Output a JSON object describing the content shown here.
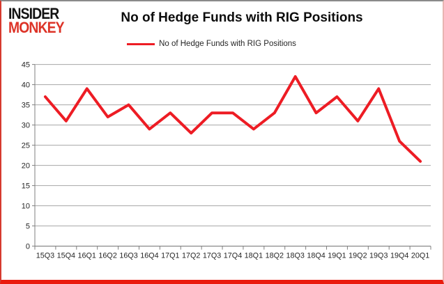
{
  "logo": {
    "line1": "INSIDER",
    "line2": "MONKEY"
  },
  "title": "No of Hedge Funds with RIG Positions",
  "legend": {
    "label": "No of Hedge Funds with RIG Positions"
  },
  "chart_data": {
    "type": "line",
    "title": "No of Hedge Funds with RIG Positions",
    "categories": [
      "15Q3",
      "15Q4",
      "16Q1",
      "16Q2",
      "16Q3",
      "16Q4",
      "17Q1",
      "17Q2",
      "17Q3",
      "17Q4",
      "18Q1",
      "18Q2",
      "18Q3",
      "18Q4",
      "19Q1",
      "19Q2",
      "19Q3",
      "19Q4",
      "20Q1"
    ],
    "series": [
      {
        "name": "No of Hedge Funds with RIG Positions",
        "color": "#ed1c24",
        "values": [
          37,
          31,
          39,
          32,
          35,
          29,
          33,
          28,
          33,
          33,
          29,
          33,
          42,
          33,
          37,
          31,
          39,
          26,
          21
        ]
      }
    ],
    "xlabel": "",
    "ylabel": "",
    "ylim": [
      0,
      45
    ],
    "ytick_step": 5,
    "grid": true,
    "legend_position": "top"
  },
  "colors": {
    "series_red": "#ed1c24",
    "grid": "#a6a6a6",
    "axis": "#7f7f7f",
    "tick_text": "#262626",
    "logo_black": "#121212",
    "logo_red": "#dd3327",
    "frame_bottom_red": "#ea1b0e",
    "background": "#ffffff"
  }
}
